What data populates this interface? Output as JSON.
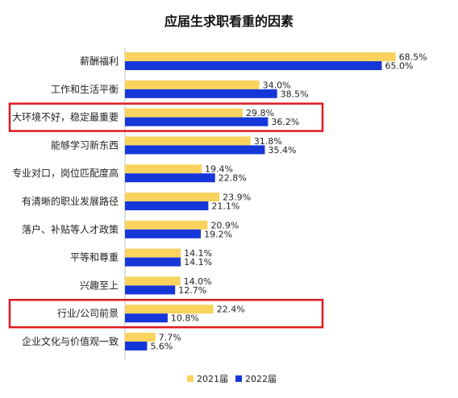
{
  "chart_data": {
    "type": "bar",
    "orientation": "horizontal",
    "title": "应届生求职看重的因素",
    "categories": [
      "薪酬福利",
      "工作和生活平衡",
      "大环境不好，稳定最重要",
      "能够学习新东西",
      "专业对口，岗位匹配度高",
      "有清晰的职业发展路径",
      "落户、补贴等人才政策",
      "平等和尊重",
      "兴趣至上",
      "行业/公司前景",
      "企业文化与价值观一致"
    ],
    "series": [
      {
        "name": "2021届",
        "color": "#FAD35E",
        "values": [
          68.5,
          34.0,
          29.8,
          31.8,
          19.4,
          23.9,
          20.9,
          14.1,
          14.0,
          22.4,
          7.7
        ],
        "labels": [
          "68.5%",
          "34.0%",
          "29.8%",
          "31.8%",
          "19.4%",
          "23.9%",
          "20.9%",
          "14.1%",
          "14.0%",
          "22.4%",
          "7.7%"
        ]
      },
      {
        "name": "2022届",
        "color": "#1537D9",
        "values": [
          65.0,
          38.5,
          36.2,
          35.4,
          22.8,
          21.1,
          19.2,
          14.1,
          12.7,
          10.8,
          5.6
        ],
        "labels": [
          "65.0%",
          "38.5%",
          "36.2%",
          "35.4%",
          "22.8%",
          "21.1%",
          "19.2%",
          "14.1%",
          "12.7%",
          "10.8%",
          "5.6%"
        ]
      }
    ],
    "highlighted_categories": [
      "大环境不好，稳定最重要",
      "行业/公司前景"
    ],
    "highlight_color": "#E0191E",
    "legend_position": "bottom",
    "grid": false
  }
}
